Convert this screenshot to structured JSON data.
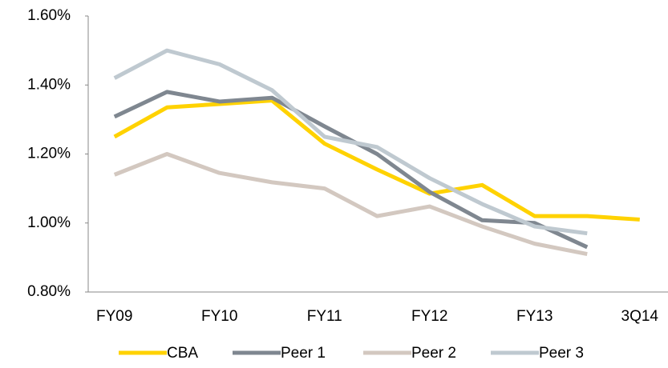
{
  "chart_data": {
    "type": "line",
    "categories": [
      "FY09",
      null,
      "FY10",
      null,
      "FY11",
      null,
      "FY12",
      null,
      "FY13",
      null,
      "3Q14"
    ],
    "series": [
      {
        "name": "CBA",
        "color": "#ffd200",
        "values": [
          1.25,
          1.335,
          1.345,
          1.355,
          1.23,
          1.155,
          1.085,
          1.11,
          1.02,
          1.02,
          1.01
        ]
      },
      {
        "name": "Peer 1",
        "color": "#7f8790",
        "values": [
          1.308,
          1.38,
          1.352,
          1.363,
          1.28,
          1.2,
          1.09,
          1.008,
          1.0,
          0.93,
          null
        ]
      },
      {
        "name": "Peer 2",
        "color": "#d3c8c0",
        "values": [
          1.14,
          1.2,
          1.145,
          1.118,
          1.1,
          1.02,
          1.048,
          0.99,
          0.94,
          0.91,
          null
        ]
      },
      {
        "name": "Peer 3",
        "color": "#bfc9d0",
        "values": [
          1.42,
          1.5,
          1.46,
          1.385,
          1.25,
          1.22,
          1.13,
          1.055,
          0.99,
          0.97,
          null
        ]
      }
    ],
    "ylim": [
      0.8,
      1.6
    ],
    "yticks": [
      {
        "value": 0.8,
        "label": "0.80%"
      },
      {
        "value": 1.0,
        "label": "1.00%"
      },
      {
        "value": 1.2,
        "label": "1.20%"
      },
      {
        "value": 1.4,
        "label": "1.40%"
      },
      {
        "value": 1.6,
        "label": "1.60%"
      }
    ],
    "legend": "bottom"
  }
}
